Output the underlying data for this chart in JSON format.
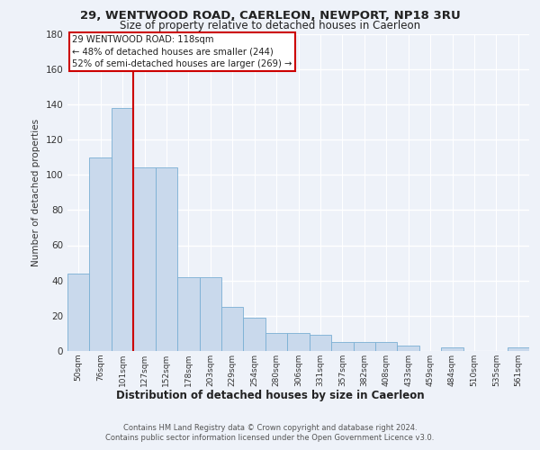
{
  "title1": "29, WENTWOOD ROAD, CAERLEON, NEWPORT, NP18 3RU",
  "title2": "Size of property relative to detached houses in Caerleon",
  "xlabel": "Distribution of detached houses by size in Caerleon",
  "ylabel": "Number of detached properties",
  "categories": [
    "50sqm",
    "76sqm",
    "101sqm",
    "127sqm",
    "152sqm",
    "178sqm",
    "203sqm",
    "229sqm",
    "254sqm",
    "280sqm",
    "306sqm",
    "331sqm",
    "357sqm",
    "382sqm",
    "408sqm",
    "433sqm",
    "459sqm",
    "484sqm",
    "510sqm",
    "535sqm",
    "561sqm"
  ],
  "values": [
    44,
    110,
    138,
    104,
    104,
    42,
    42,
    25,
    19,
    10,
    10,
    9,
    5,
    5,
    5,
    3,
    0,
    2,
    0,
    0,
    2
  ],
  "bar_color": "#c9d9ec",
  "bar_edgecolor": "#7aafd4",
  "marker_color": "#cc0000",
  "ylim": [
    0,
    180
  ],
  "yticks": [
    0,
    20,
    40,
    60,
    80,
    100,
    120,
    140,
    160,
    180
  ],
  "annotation_text": "29 WENTWOOD ROAD: 118sqm\n← 48% of detached houses are smaller (244)\n52% of semi-detached houses are larger (269) →",
  "footer1": "Contains HM Land Registry data © Crown copyright and database right 2024.",
  "footer2": "Contains public sector information licensed under the Open Government Licence v3.0.",
  "bg_color": "#eef2f9"
}
